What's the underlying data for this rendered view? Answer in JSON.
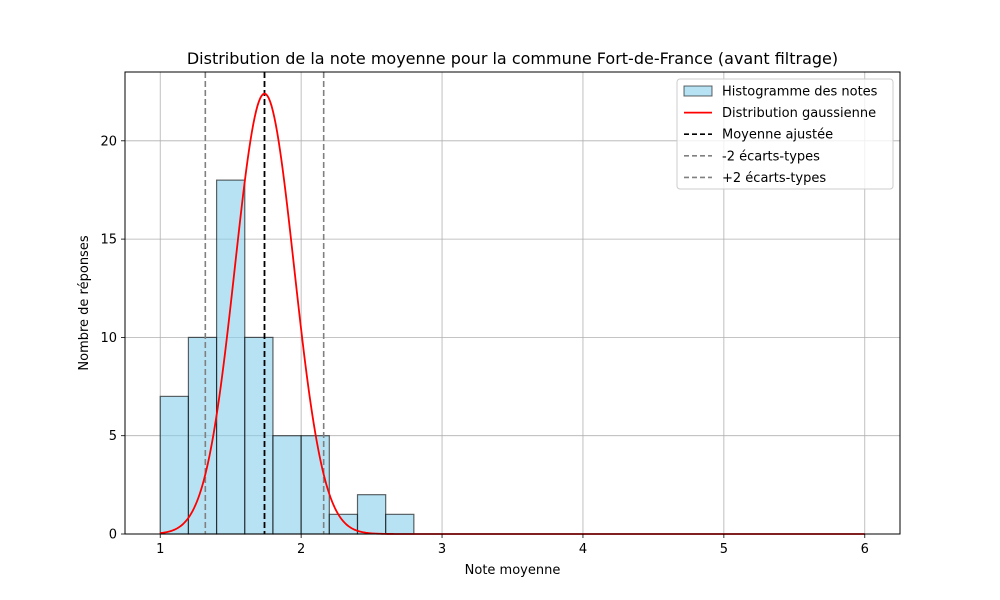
{
  "chart_data": {
    "type": "bar",
    "title": "Distribution de la note moyenne pour la commune Fort-de-France (avant filtrage)",
    "xlabel": "Note moyenne",
    "ylabel": "Nombre de réponses",
    "xlim": [
      0.75,
      6.25
    ],
    "ylim": [
      0,
      23.5
    ],
    "x_ticks": [
      "1",
      "2",
      "3",
      "4",
      "5",
      "6"
    ],
    "y_ticks": [
      "0",
      "5",
      "10",
      "15",
      "20"
    ],
    "grid": true,
    "legend_position": "top-right",
    "histogram": {
      "name": "Histogramme des notes",
      "bin_edges": [
        1.0,
        1.2,
        1.4,
        1.6,
        1.8,
        2.0,
        2.2,
        2.4,
        2.6,
        2.8
      ],
      "counts": [
        7,
        10,
        18,
        10,
        5,
        5,
        1,
        2,
        1
      ],
      "color": "#87ceeb"
    },
    "gaussian": {
      "name": "Distribution gaussienne",
      "mean": 1.74,
      "std": 0.21,
      "peak": 22.4,
      "x_range": [
        1.0,
        6.0
      ],
      "color": "#ff0000"
    },
    "vlines": [
      {
        "name": "Moyenne ajustée",
        "x": 1.74,
        "color": "#000000",
        "style": "dashed"
      },
      {
        "name": "-2 écarts-types",
        "x": 1.32,
        "color": "#808080",
        "style": "dashed"
      },
      {
        "name": "+2 écarts-types",
        "x": 2.16,
        "color": "#808080",
        "style": "dashed"
      }
    ],
    "legend": [
      {
        "label": "Histogramme des notes",
        "kind": "patch"
      },
      {
        "label": "Distribution gaussienne",
        "kind": "line"
      },
      {
        "label": "Moyenne ajustée",
        "kind": "dash-black"
      },
      {
        "label": "-2 écarts-types",
        "kind": "dash-gray"
      },
      {
        "label": "+2 écarts-types",
        "kind": "dash-gray"
      }
    ]
  }
}
